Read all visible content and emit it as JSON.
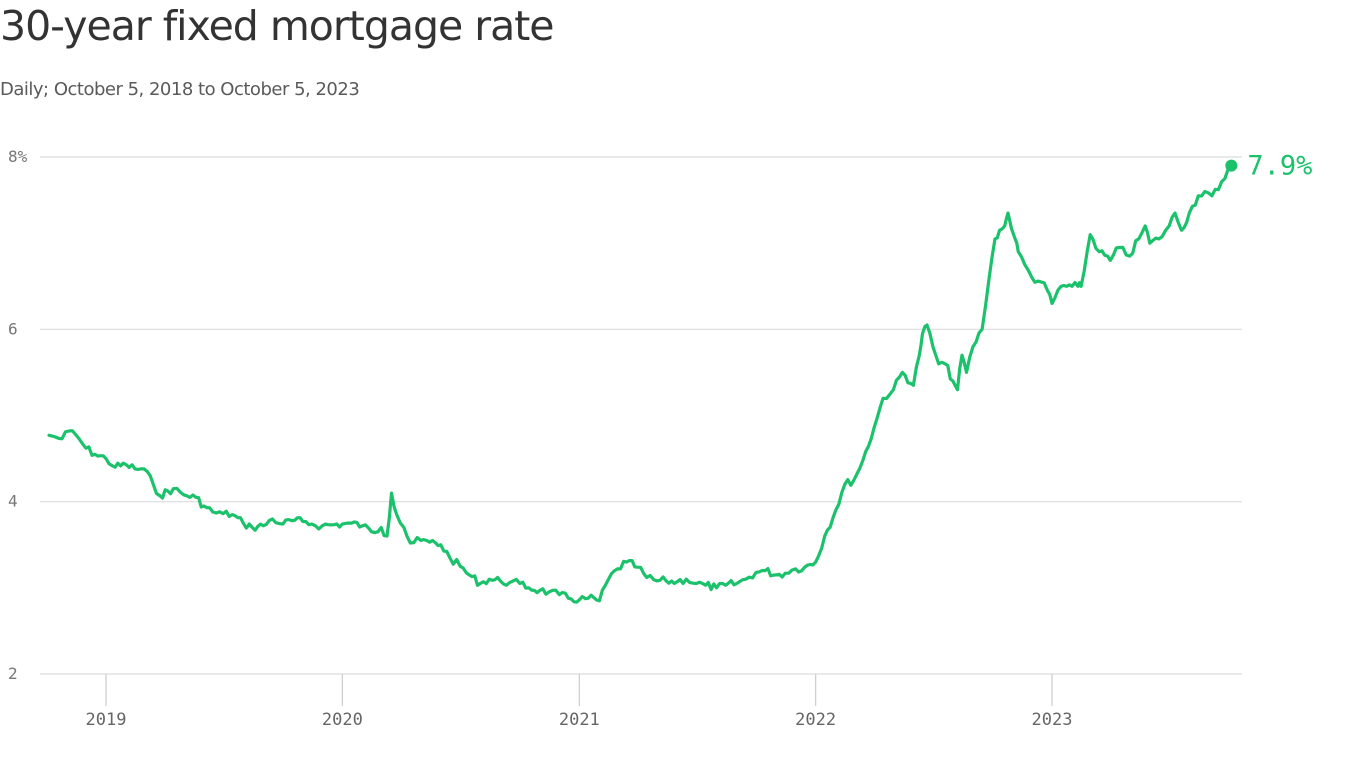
{
  "chart_data": {
    "type": "line",
    "title": "30-year fixed mortgage rate",
    "subtitle": "Daily; October 5, 2018 to October 5, 2023",
    "xlabel": "",
    "ylabel": "",
    "ylim": [
      2,
      8
    ],
    "y_ticks": [
      2,
      4,
      6,
      8
    ],
    "y_tick_labels": [
      "2",
      "4",
      "6",
      "8%"
    ],
    "x_range": [
      "2018-10-05",
      "2023-10-05"
    ],
    "x_ticks": [
      "2019-01-01",
      "2020-01-01",
      "2021-01-01",
      "2022-01-01",
      "2023-01-01"
    ],
    "x_tick_labels": [
      "2019",
      "2020",
      "2021",
      "2022",
      "2023"
    ],
    "grid": true,
    "line_color": "#1cc26b",
    "end_label": "7.9%",
    "series": [
      {
        "x": [
          "2018-10-05",
          "2018-10-15",
          "2018-10-25",
          "2018-11-05",
          "2018-11-15",
          "2018-12-01",
          "2018-12-15",
          "2019-01-01",
          "2019-01-15",
          "2019-02-01",
          "2019-02-15",
          "2019-03-01",
          "2019-03-15",
          "2019-03-25",
          "2019-04-15",
          "2019-05-01",
          "2019-05-20",
          "2019-06-01",
          "2019-06-15",
          "2019-07-01",
          "2019-07-15",
          "2019-08-01",
          "2019-08-15",
          "2019-09-01",
          "2019-09-15",
          "2019-10-01",
          "2019-10-15",
          "2019-11-01",
          "2019-11-15",
          "2019-12-01",
          "2019-12-15",
          "2020-01-01",
          "2020-01-15",
          "2020-02-01",
          "2020-02-15",
          "2020-03-01",
          "2020-03-10",
          "2020-03-17",
          "2020-03-25",
          "2020-04-05",
          "2020-04-15",
          "2020-05-01",
          "2020-05-15",
          "2020-06-01",
          "2020-06-15",
          "2020-07-01",
          "2020-07-15",
          "2020-08-01",
          "2020-08-15",
          "2020-09-01",
          "2020-09-15",
          "2020-10-01",
          "2020-10-15",
          "2020-11-01",
          "2020-11-15",
          "2020-12-01",
          "2020-12-15",
          "2021-01-01",
          "2021-01-15",
          "2021-02-01",
          "2021-02-15",
          "2021-03-01",
          "2021-03-15",
          "2021-04-01",
          "2021-04-15",
          "2021-05-01",
          "2021-05-15",
          "2021-06-01",
          "2021-06-15",
          "2021-07-01",
          "2021-07-15",
          "2021-08-01",
          "2021-08-15",
          "2021-09-01",
          "2021-09-15",
          "2021-10-01",
          "2021-10-15",
          "2021-11-01",
          "2021-11-15",
          "2021-12-01",
          "2021-12-15",
          "2022-01-01",
          "2022-01-15",
          "2022-02-01",
          "2022-02-15",
          "2022-03-01",
          "2022-03-15",
          "2022-04-01",
          "2022-04-15",
          "2022-05-01",
          "2022-05-15",
          "2022-06-01",
          "2022-06-10",
          "2022-06-15",
          "2022-06-22",
          "2022-07-01",
          "2022-07-10",
          "2022-07-20",
          "2022-08-01",
          "2022-08-08",
          "2022-08-15",
          "2022-08-22",
          "2022-09-01",
          "2022-09-15",
          "2022-09-26",
          "2022-10-05",
          "2022-10-12",
          "2022-10-20",
          "2022-10-25",
          "2022-11-05",
          "2022-11-10",
          "2022-11-20",
          "2022-12-01",
          "2022-12-15",
          "2022-12-25",
          "2023-01-01",
          "2023-01-15",
          "2023-02-01",
          "2023-02-10",
          "2023-02-15",
          "2023-03-01",
          "2023-03-05",
          "2023-03-15",
          "2023-04-01",
          "2023-04-15",
          "2023-05-01",
          "2023-05-15",
          "2023-05-25",
          "2023-06-01",
          "2023-06-15",
          "2023-07-01",
          "2023-07-10",
          "2023-07-20",
          "2023-08-01",
          "2023-08-15",
          "2023-08-25",
          "2023-09-05",
          "2023-09-15",
          "2023-09-25",
          "2023-10-05"
        ],
        "values": [
          4.77,
          4.75,
          4.73,
          4.82,
          4.78,
          4.62,
          4.55,
          4.5,
          4.4,
          4.43,
          4.38,
          4.38,
          4.2,
          4.07,
          4.15,
          4.08,
          4.05,
          3.95,
          3.88,
          3.86,
          3.85,
          3.75,
          3.7,
          3.72,
          3.8,
          3.74,
          3.78,
          3.77,
          3.74,
          3.72,
          3.73,
          3.74,
          3.75,
          3.72,
          3.65,
          3.7,
          3.6,
          4.1,
          3.85,
          3.7,
          3.52,
          3.55,
          3.53,
          3.5,
          3.35,
          3.25,
          3.15,
          3.05,
          3.1,
          3.08,
          3.06,
          3.05,
          3.0,
          2.97,
          2.95,
          2.92,
          2.88,
          2.86,
          2.88,
          2.85,
          3.1,
          3.22,
          3.3,
          3.24,
          3.12,
          3.08,
          3.08,
          3.07,
          3.1,
          3.05,
          3.03,
          3.0,
          3.03,
          3.05,
          3.1,
          3.18,
          3.2,
          3.15,
          3.17,
          3.22,
          3.24,
          3.3,
          3.6,
          3.9,
          4.2,
          4.25,
          4.48,
          4.85,
          5.2,
          5.3,
          5.5,
          5.35,
          5.7,
          5.95,
          6.05,
          5.8,
          5.6,
          5.6,
          5.4,
          5.3,
          5.7,
          5.5,
          5.8,
          6.0,
          6.6,
          7.05,
          7.15,
          7.2,
          7.35,
          7.05,
          6.9,
          6.75,
          6.6,
          6.55,
          6.45,
          6.3,
          6.5,
          6.5,
          6.5,
          6.5,
          7.1,
          7.05,
          6.9,
          6.8,
          6.95,
          6.85,
          7.05,
          7.2,
          7.0,
          7.05,
          7.2,
          7.35,
          7.15,
          7.35,
          7.55,
          7.6,
          7.55,
          7.62,
          7.75,
          7.9
        ]
      }
    ]
  }
}
